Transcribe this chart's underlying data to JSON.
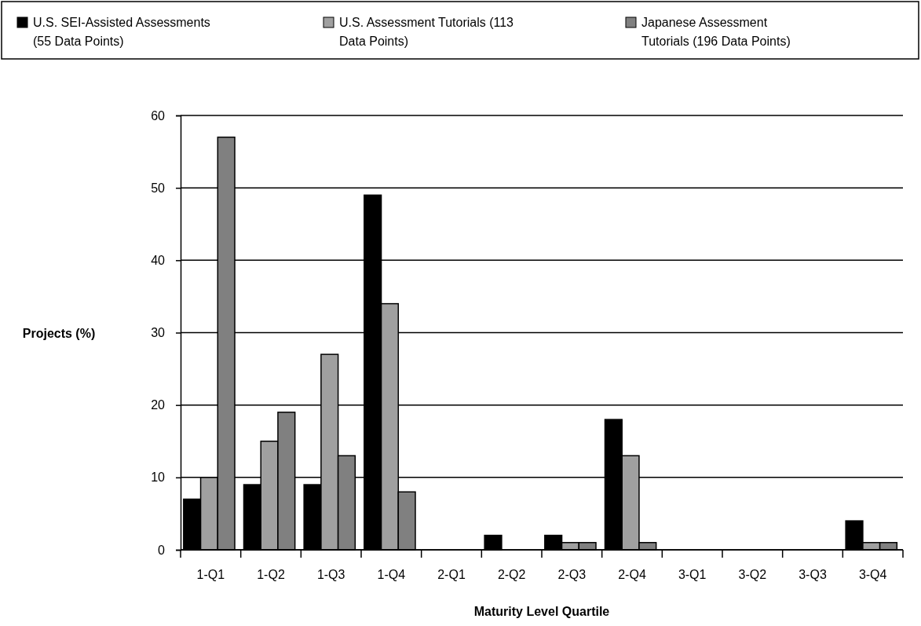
{
  "chart_data": {
    "type": "bar",
    "xlabel": "Maturity Level Quartile",
    "ylabel": "Projects (%)",
    "categories": [
      "1-Q1",
      "1-Q2",
      "1-Q3",
      "1-Q4",
      "2-Q1",
      "2-Q2",
      "2-Q3",
      "2-Q4",
      "3-Q1",
      "3-Q2",
      "3-Q3",
      "3-Q4"
    ],
    "series": [
      {
        "name": "U.S. SEI-Assisted Assessments (55 Data Points)",
        "color": "#000000",
        "values": [
          7,
          9,
          9,
          49,
          0,
          2,
          2,
          18,
          0,
          0,
          0,
          4
        ]
      },
      {
        "name": "U.S. Assessment Tutorials (113 Data Points)",
        "color": "#a0a0a0",
        "values": [
          10,
          15,
          27,
          34,
          0,
          0,
          1,
          13,
          0,
          0,
          0,
          1
        ]
      },
      {
        "name": "Japanese Assessment Tutorials (196 Data Points)",
        "color": "#808080",
        "values": [
          57,
          19,
          13,
          8,
          0,
          0,
          1,
          1,
          0,
          0,
          0,
          1
        ]
      }
    ],
    "ylim": [
      0,
      60
    ],
    "yticks": [
      0,
      10,
      20,
      30,
      40,
      50,
      60
    ],
    "grid": "y",
    "legend": "top"
  }
}
